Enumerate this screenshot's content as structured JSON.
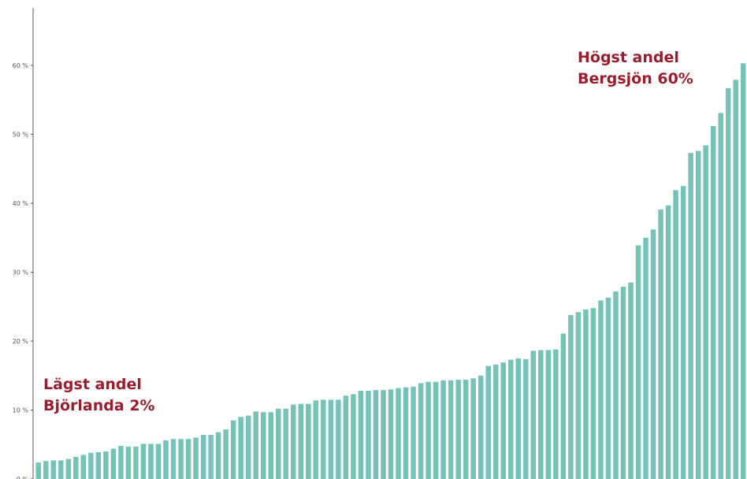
{
  "chart_data": {
    "type": "bar",
    "title": "",
    "xlabel": "",
    "ylabel": "",
    "ylim": [
      0,
      68
    ],
    "yticks": [
      0,
      10,
      20,
      30,
      40,
      50,
      60
    ],
    "ytick_labels": [
      "0 %",
      "10 %",
      "20 %",
      "30 %",
      "40 %",
      "50 %",
      "60 %"
    ],
    "grid": false,
    "bar_color": "#74c2b8",
    "annotations": [
      {
        "lines": [
          "Högst andel",
          "Bergsjön 60%"
        ],
        "color": "#9b1c2c"
      },
      {
        "lines": [
          "Lägst andel",
          "Björlanda 2%"
        ],
        "color": "#9b1c2c"
      }
    ],
    "values": [
      2.4,
      2.6,
      2.7,
      2.7,
      2.9,
      3.2,
      3.5,
      3.8,
      3.9,
      4.0,
      4.4,
      4.8,
      4.7,
      4.7,
      5.1,
      5.1,
      5.1,
      5.6,
      5.8,
      5.8,
      5.8,
      6.0,
      6.4,
      6.4,
      6.8,
      7.2,
      8.5,
      9.0,
      9.2,
      9.8,
      9.7,
      9.7,
      10.2,
      10.2,
      10.8,
      10.9,
      10.9,
      11.4,
      11.5,
      11.5,
      11.5,
      12.1,
      12.3,
      12.8,
      12.8,
      12.9,
      12.9,
      13.0,
      13.2,
      13.3,
      13.4,
      13.9,
      14.1,
      14.1,
      14.3,
      14.3,
      14.4,
      14.4,
      14.6,
      15.0,
      16.4,
      16.6,
      16.9,
      17.3,
      17.5,
      17.4,
      18.6,
      18.7,
      18.7,
      18.8,
      21.1,
      23.8,
      24.2,
      24.6,
      24.8,
      25.9,
      26.3,
      27.2,
      27.9,
      28.5,
      33.9,
      35.0,
      36.2,
      39.1,
      39.7,
      41.9,
      42.5,
      47.3,
      47.6,
      48.4,
      51.2,
      53.1,
      56.7,
      57.9,
      60.3
    ]
  }
}
